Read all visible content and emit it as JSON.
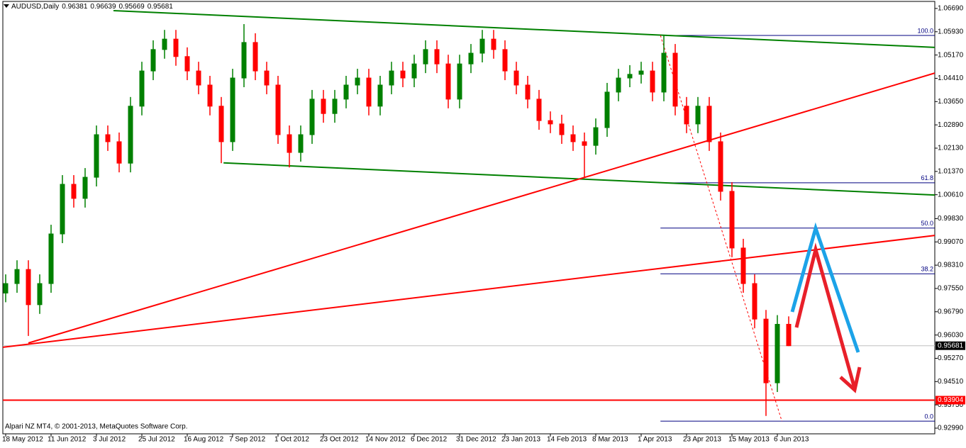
{
  "chart_data": {
    "type": "candlestick",
    "title": "AUDUSD,Daily",
    "footer": "Alpari NZ MT4, © 2001-2013, MetaQuotes Software Corp.",
    "categories": [
      "18 May 2012",
      null,
      null,
      null,
      "11 Jun 2012",
      null,
      null,
      null,
      "3 Jul 2012",
      null,
      null,
      null,
      "25 Jul 2012",
      null,
      null,
      null,
      "16 Aug 2012",
      null,
      null,
      null,
      "7 Sep 2012",
      null,
      null,
      null,
      "1 Oct 2012",
      null,
      null,
      null,
      "23 Oct 2012",
      null,
      null,
      null,
      "14 Nov 2012",
      null,
      null,
      null,
      "6 Dec 2012",
      null,
      null,
      null,
      "31 Dec 2012",
      null,
      null,
      null,
      "23 Jan 2013",
      null,
      null,
      null,
      "14 Feb 2013",
      null,
      null,
      null,
      "8 Mar 2013",
      null,
      null,
      null,
      "1 Apr 2013",
      null,
      null,
      null,
      "23 Apr 2013",
      null,
      null,
      null,
      "15 May 2013",
      null,
      null,
      null,
      "6 Jun 2013",
      null
    ],
    "open": [
      0.974,
      0.9771,
      0.9817,
      0.9702,
      0.9771,
      0.9933,
      1.0095,
      1.0049,
      1.0118,
      1.0257,
      1.0234,
      1.0164,
      1.035,
      1.0465,
      1.0535,
      1.0569,
      1.0512,
      1.0465,
      1.0419,
      1.035,
      1.0234,
      1.0442,
      1.0558,
      1.0465,
      1.0419,
      1.0257,
      1.0199,
      1.0257,
      1.0373,
      1.0326,
      1.0373,
      1.0419,
      1.0442,
      1.035,
      1.0419,
      1.0465,
      1.0442,
      1.0488,
      1.0535,
      1.0488,
      1.0373,
      1.0488,
      1.0523,
      1.0569,
      1.0535,
      1.0465,
      1.0419,
      1.0373,
      1.0303,
      1.0292,
      1.0257,
      1.0234,
      1.0222,
      1.028,
      1.0396,
      1.0442,
      1.0454,
      1.0465,
      1.0396,
      1.0523,
      1.035,
      1.0292,
      1.035,
      1.0234,
      1.0072,
      0.9887,
      0.9771,
      0.9655,
      0.9447,
      0.96381
    ],
    "high": [
      0.9801,
      0.9847,
      0.9847,
      0.9801,
      0.9963,
      1.0125,
      1.0125,
      1.0148,
      1.0287,
      1.0287,
      1.0264,
      1.038,
      1.0495,
      1.0565,
      1.0599,
      1.0599,
      1.0542,
      1.0495,
      1.0449,
      1.038,
      1.0472,
      1.0618,
      1.0588,
      1.0495,
      1.0449,
      1.0287,
      1.0287,
      1.0403,
      1.0403,
      1.0403,
      1.0449,
      1.0472,
      1.0472,
      1.0449,
      1.0495,
      1.0495,
      1.0518,
      1.0565,
      1.0565,
      1.0518,
      1.0518,
      1.0553,
      1.0599,
      1.0599,
      1.0565,
      1.0495,
      1.0449,
      1.0403,
      1.0333,
      1.0322,
      1.0287,
      1.0264,
      1.031,
      1.0426,
      1.0472,
      1.0484,
      1.0495,
      1.0495,
      1.0581,
      1.0553,
      1.038,
      1.038,
      1.038,
      1.0264,
      1.0102,
      0.9917,
      0.9801,
      0.9685,
      0.9668,
      0.96639
    ],
    "low": [
      0.971,
      0.9741,
      0.96,
      0.9672,
      0.9741,
      0.9903,
      1.0019,
      1.0019,
      1.0088,
      1.0204,
      1.0134,
      1.0134,
      1.032,
      1.0435,
      1.0505,
      1.0482,
      1.0435,
      1.0389,
      1.032,
      1.0164,
      1.0204,
      1.0412,
      1.0435,
      1.0389,
      1.0227,
      1.015,
      1.0169,
      1.0227,
      1.0296,
      1.0296,
      1.0343,
      1.0389,
      1.032,
      1.032,
      1.0389,
      1.0412,
      1.0412,
      1.0458,
      1.0458,
      1.0343,
      1.0343,
      1.0458,
      1.0493,
      1.0505,
      1.0435,
      1.0389,
      1.0343,
      1.0273,
      1.0262,
      1.0227,
      1.0204,
      1.0115,
      1.0192,
      1.025,
      1.0366,
      1.0412,
      1.0424,
      1.0366,
      1.0366,
      1.032,
      1.0262,
      1.0262,
      1.0204,
      1.0042,
      0.9857,
      0.9741,
      0.9625,
      0.9339,
      0.9417,
      0.95669
    ],
    "close": [
      0.9771,
      0.9817,
      0.9702,
      0.9771,
      0.9933,
      1.0095,
      1.0049,
      1.0118,
      1.0257,
      1.0234,
      1.0164,
      1.035,
      1.0465,
      1.0535,
      1.0569,
      1.0512,
      1.0465,
      1.0419,
      1.035,
      1.0234,
      1.0442,
      1.0558,
      1.0465,
      1.0419,
      1.0257,
      1.0199,
      1.0257,
      1.0373,
      1.0326,
      1.0373,
      1.0419,
      1.0442,
      1.035,
      1.0419,
      1.0465,
      1.0442,
      1.0488,
      1.0535,
      1.0488,
      1.0373,
      1.0488,
      1.0523,
      1.0569,
      1.0535,
      1.0465,
      1.0419,
      1.0373,
      1.0303,
      1.0292,
      1.0257,
      1.0234,
      1.0222,
      1.028,
      1.0396,
      1.0442,
      1.0454,
      1.0465,
      1.0396,
      1.0523,
      1.035,
      1.0292,
      1.035,
      1.0234,
      1.0072,
      0.9887,
      0.9771,
      0.9655,
      0.9447,
      0.9638,
      0.95681
    ],
    "up_color": "#008000",
    "down_color": "#ff0000",
    "ylim": [
      0.92805,
      1.0692
    ],
    "yticks": [
      {
        "value": 1.0669,
        "label": "1.06690"
      },
      {
        "value": 1.0593,
        "label": "1.05930"
      },
      {
        "value": 1.0517,
        "label": "1.05170"
      },
      {
        "value": 1.0441,
        "label": "1.04410"
      },
      {
        "value": 1.0365,
        "label": "1.03650"
      },
      {
        "value": 1.0289,
        "label": "1.02890"
      },
      {
        "value": 1.0213,
        "label": "1.02130"
      },
      {
        "value": 1.0137,
        "label": "1.01370"
      },
      {
        "value": 1.0061,
        "label": "1.00610"
      },
      {
        "value": 0.9983,
        "label": "0.99830"
      },
      {
        "value": 0.9907,
        "label": "0.99070"
      },
      {
        "value": 0.9831,
        "label": "0.98310"
      },
      {
        "value": 0.9755,
        "label": "0.97550"
      },
      {
        "value": 0.9679,
        "label": "0.96790"
      },
      {
        "value": 0.9603,
        "label": "0.96030"
      },
      {
        "value": 0.9527,
        "label": "0.95270"
      },
      {
        "value": 0.9451,
        "label": "0.94510"
      },
      {
        "value": 0.9375,
        "label": "0.93750"
      },
      {
        "value": 0.9299,
        "label": "0.92990"
      }
    ],
    "trendlines": [
      {
        "color": "#008000",
        "points": [
          [
            9.5,
            1.0662
          ],
          [
            81.875,
            1.0542
          ]
        ]
      },
      {
        "color": "#008000",
        "points": [
          [
            19.2,
            1.0165
          ],
          [
            81.875,
            1.006
          ]
        ]
      },
      {
        "color": "#ff0000",
        "points": [
          [
            2,
            0.9577
          ],
          [
            81.875,
            1.0458
          ]
        ]
      },
      {
        "color": "#ff0000",
        "points": [
          [
            -0.25,
            0.9563
          ],
          [
            81.875,
            0.9928
          ]
        ]
      }
    ],
    "fib_line": {
      "color": "#ff0000",
      "points": [
        [
          57.7,
          1.0581
        ],
        [
          68.4,
          0.9322
        ]
      ]
    },
    "fib_levels": [
      {
        "label": "100.0",
        "price": 1.0581
      },
      {
        "label": "61.8",
        "price": 1.01
      },
      {
        "label": "50.0",
        "price": 0.9952
      },
      {
        "label": "38.2",
        "price": 0.9803
      },
      {
        "label": "0.0",
        "price": 0.9322
      }
    ],
    "fib_color": "#000080",
    "hline": {
      "value": 0.93904,
      "color": "#ff0000"
    }
  }
}
